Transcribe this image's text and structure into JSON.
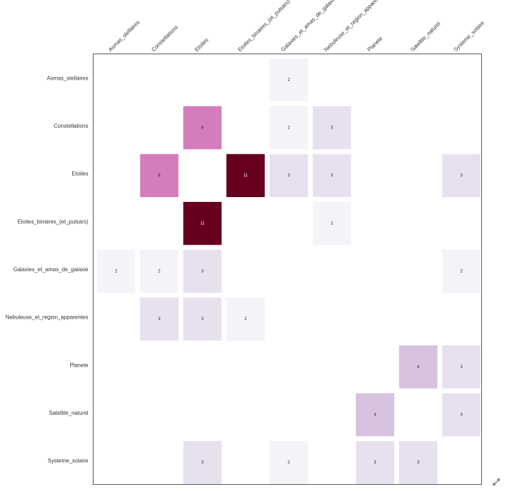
{
  "chart_data": {
    "type": "heatmap",
    "title": "",
    "xlabel": "",
    "ylabel": "",
    "x_categories": [
      "Asmas_stellaires",
      "Constellations",
      "Etoiles",
      "Etoiles_binaires_(et_pulsars)",
      "Galaxies_et_amas_de_galaxie",
      "Nebuleuse_et_region_apparentes",
      "Planete",
      "Satellite_naturel",
      "Systeme_solaire"
    ],
    "y_categories": [
      "Asmas_stellaires",
      "Constellations",
      "Etoiles",
      "Etoiles_binaires_(et_pulsars)",
      "Galaxies_et_amas_de_galaxie",
      "Nebuleuse_et_region_apparentes",
      "Planete",
      "Satellite_naturel",
      "Systeme_solaire"
    ],
    "values": [
      [
        null,
        null,
        null,
        null,
        2,
        null,
        null,
        null,
        null
      ],
      [
        null,
        null,
        6,
        null,
        2,
        3,
        null,
        null,
        null
      ],
      [
        null,
        6,
        null,
        11,
        3,
        3,
        null,
        null,
        3
      ],
      [
        null,
        null,
        11,
        null,
        null,
        2,
        null,
        null,
        null
      ],
      [
        2,
        2,
        3,
        null,
        null,
        null,
        null,
        null,
        2
      ],
      [
        null,
        3,
        3,
        2,
        null,
        null,
        null,
        null,
        null
      ],
      [
        null,
        null,
        null,
        null,
        null,
        null,
        null,
        4,
        3
      ],
      [
        null,
        null,
        null,
        null,
        null,
        null,
        4,
        null,
        3
      ],
      [
        null,
        null,
        3,
        null,
        2,
        null,
        3,
        3,
        null
      ]
    ],
    "value_range": [
      2,
      11
    ],
    "colors": {
      "2": "#f5f2f8",
      "3": "#e7e1ef",
      "4": "#d7c2df",
      "6": "#d57cbd",
      "11": "#67001f"
    },
    "grid": false,
    "legend": "none"
  },
  "controls": {
    "expand_icon": "expand-arrows-icon"
  }
}
